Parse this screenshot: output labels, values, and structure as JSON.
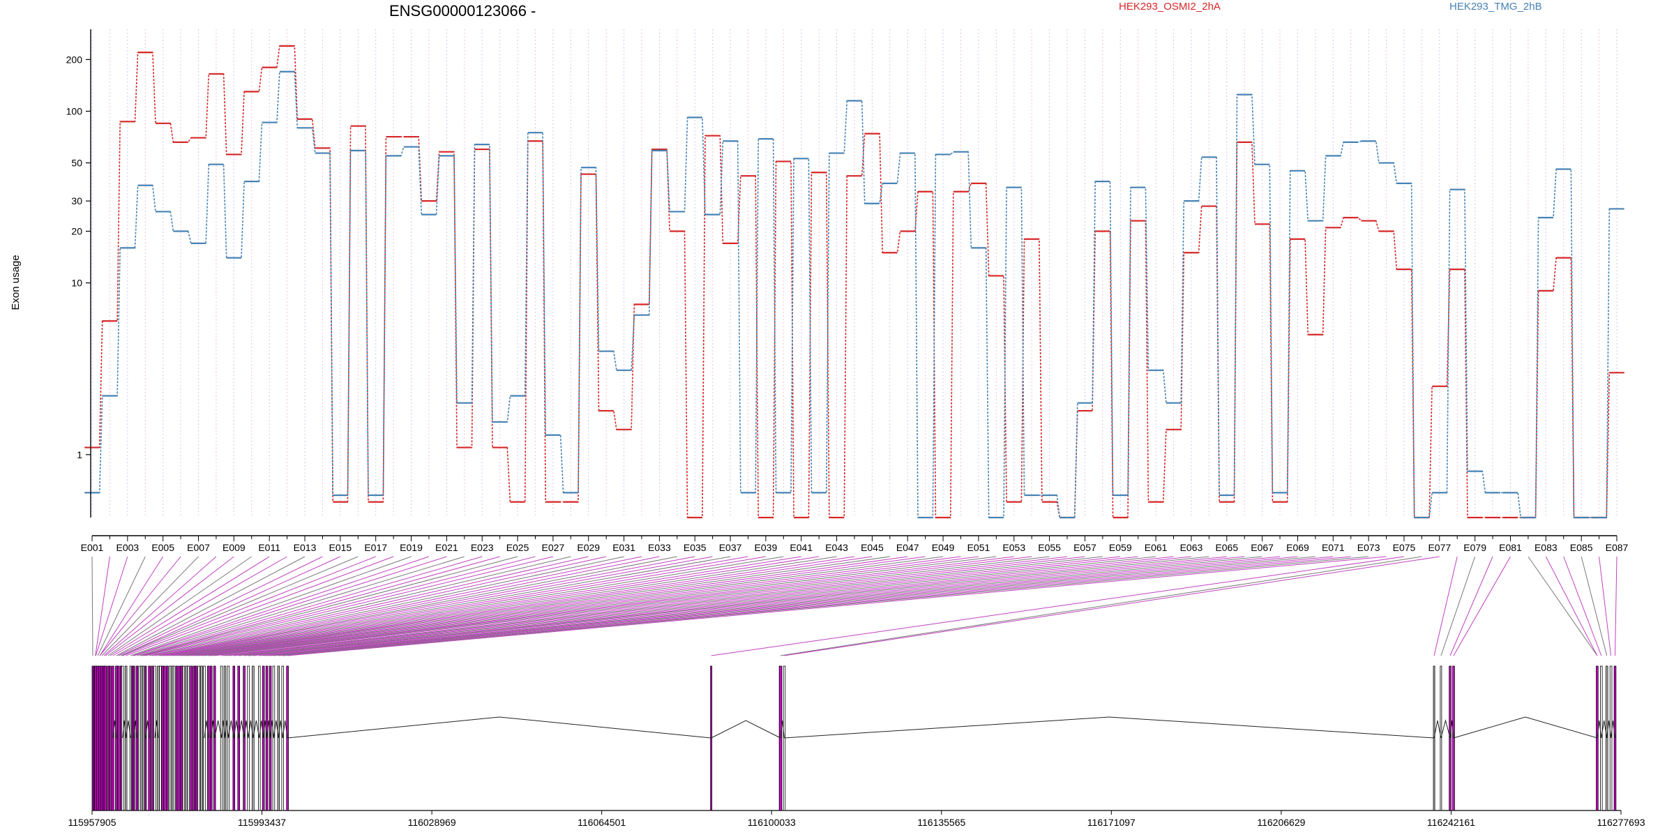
{
  "chart_data": {
    "type": "line",
    "title": "ENSG00000123066 -",
    "ylabel": "Exon usage",
    "xlabel": "",
    "yscale": "log",
    "ylim": [
      0.43,
      300
    ],
    "yticks": [
      1,
      10,
      20,
      30,
      50,
      100,
      200
    ],
    "grid": true,
    "legend_position": "top",
    "categories": [
      "E001",
      "E002",
      "E003",
      "E004",
      "E005",
      "E006",
      "E007",
      "E008",
      "E009",
      "E010",
      "E011",
      "E012",
      "E013",
      "E014",
      "E015",
      "E016",
      "E017",
      "E018",
      "E019",
      "E020",
      "E021",
      "E022",
      "E023",
      "E024",
      "E025",
      "E026",
      "E027",
      "E028",
      "E029",
      "E030",
      "E031",
      "E032",
      "E033",
      "E034",
      "E035",
      "E036",
      "E037",
      "E038",
      "E039",
      "E040",
      "E041",
      "E042",
      "E043",
      "E044",
      "E045",
      "E046",
      "E047",
      "E048",
      "E049",
      "E050",
      "E051",
      "E052",
      "E053",
      "E054",
      "E055",
      "E056",
      "E057",
      "E058",
      "E059",
      "E060",
      "E061",
      "E062",
      "E063",
      "E064",
      "E065",
      "E066",
      "E067",
      "E068",
      "E069",
      "E070",
      "E071",
      "E072",
      "E073",
      "E074",
      "E075",
      "E076",
      "E077",
      "E078",
      "E079",
      "E080",
      "E081",
      "E082",
      "E083",
      "E084",
      "E085",
      "E086",
      "E087"
    ],
    "tick_labels": [
      "E001",
      "E003",
      "E005",
      "E007",
      "E009",
      "E011",
      "E013",
      "E015",
      "E017",
      "E019",
      "E021",
      "E023",
      "E025",
      "E027",
      "E029",
      "E031",
      "E033",
      "E035",
      "E037",
      "E039",
      "E041",
      "E043",
      "E045",
      "E047",
      "E049",
      "E051",
      "E053",
      "E055",
      "E057",
      "E059",
      "E061",
      "E063",
      "E065",
      "E067",
      "E069",
      "E071",
      "E073",
      "E075",
      "E077",
      "E079",
      "E081",
      "E083",
      "E085",
      "E087"
    ],
    "series": [
      {
        "name": "HEK293_OSMI2_2hA",
        "color": "#d62728",
        "values": [
          1.1,
          6,
          87,
          220,
          85,
          66,
          70,
          165,
          56,
          130,
          180,
          240,
          90,
          61,
          0.53,
          82,
          0.53,
          71,
          71,
          30,
          58,
          1.1,
          60,
          1.1,
          0.53,
          67,
          0.53,
          0.53,
          43,
          1.8,
          1.4,
          7.5,
          60,
          20,
          0.43,
          72,
          17,
          42,
          0.43,
          51,
          0.43,
          44,
          0.43,
          42,
          74,
          15,
          20,
          34,
          0.43,
          34,
          38,
          11,
          0.53,
          18,
          0.53,
          0.43,
          1.8,
          20,
          0.43,
          23,
          0.53,
          1.4,
          15,
          28,
          0.53,
          66,
          22,
          0.53,
          18,
          5,
          21,
          24,
          23,
          20,
          12,
          0.43,
          2.5,
          12,
          0.43,
          0.43,
          0.43,
          0.43,
          9,
          14,
          0.43,
          0.43,
          3
        ]
      },
      {
        "name": "HEK293_TMG_2hB",
        "color": "#4682b4",
        "values": [
          0.6,
          2.2,
          16,
          37,
          26,
          20,
          17,
          49,
          14,
          39,
          86,
          170,
          80,
          57,
          0.58,
          59,
          0.58,
          55,
          62,
          25,
          55,
          2,
          64,
          1.55,
          2.2,
          75,
          1.3,
          0.6,
          47,
          4,
          3.1,
          6.5,
          59,
          26,
          92,
          25,
          67,
          0.6,
          69,
          0.6,
          53,
          0.6,
          57,
          115,
          29,
          38,
          57,
          0.43,
          56,
          58,
          16,
          0.43,
          36,
          0.58,
          0.58,
          0.43,
          2,
          39,
          0.58,
          36,
          3.1,
          2,
          30,
          54,
          0.58,
          125,
          49,
          0.6,
          45,
          23,
          55,
          66,
          67,
          50,
          38,
          0.43,
          0.6,
          35,
          0.8,
          0.6,
          0.6,
          0.43,
          24,
          46,
          0.43,
          0.43,
          27
        ]
      }
    ],
    "genome_coordinates": [
      "115957905",
      "115993437",
      "116028969",
      "116064501",
      "116100033",
      "116135565",
      "116171097",
      "116206629",
      "116242161",
      "116277693"
    ]
  }
}
